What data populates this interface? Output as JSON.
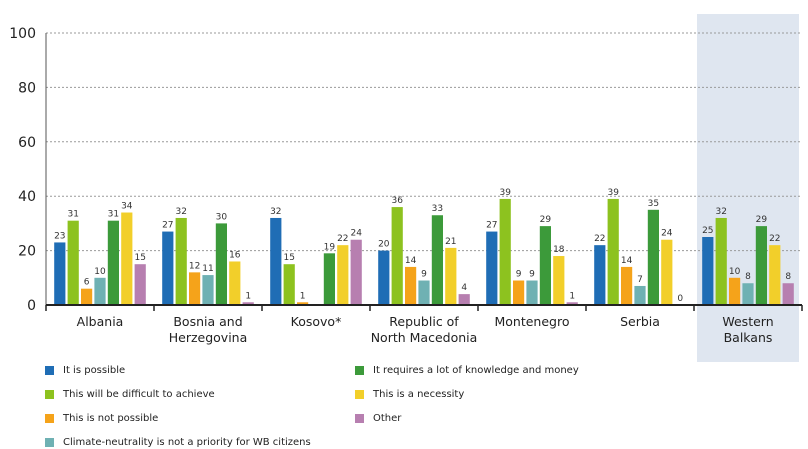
{
  "chart_data": {
    "type": "bar",
    "categories": [
      "Albania",
      "Bosnia and Herzegovina",
      "Kosovo*",
      "Republic of North Macedonia",
      "Montenegro",
      "Serbia",
      "Western Balkans"
    ],
    "category_lines": [
      [
        "Albania"
      ],
      [
        "Bosnia and",
        "Herzegovina"
      ],
      [
        "Kosovo*"
      ],
      [
        "Republic of",
        "North Macedonia"
      ],
      [
        "Montenegro"
      ],
      [
        "Serbia"
      ],
      [
        "Western",
        "Balkans"
      ]
    ],
    "series": [
      {
        "name": "It is possible",
        "color": "#1f6db5",
        "values": [
          23,
          27,
          32,
          20,
          27,
          22,
          25
        ]
      },
      {
        "name": "This will be difficult to achieve",
        "color": "#8dc21f",
        "values": [
          31,
          32,
          15,
          36,
          39,
          39,
          32
        ]
      },
      {
        "name": "This is not possible",
        "color": "#f5a31a",
        "values": [
          6,
          12,
          1,
          14,
          9,
          14,
          10
        ]
      },
      {
        "name": "Climate-neutrality is not a priority for WB citizens",
        "color": "#6fb1b3",
        "values": [
          10,
          11,
          null,
          9,
          9,
          7,
          8
        ]
      },
      {
        "name": "It requires a lot of knowledge and money",
        "color": "#3c9a3a",
        "values": [
          31,
          30,
          19,
          33,
          29,
          35,
          29
        ]
      },
      {
        "name": "This is a necessity",
        "color": "#f2cf2a",
        "values": [
          34,
          16,
          22,
          21,
          18,
          24,
          22
        ]
      },
      {
        "name": "Other",
        "color": "#b77fb0",
        "values": [
          15,
          1,
          24,
          4,
          1,
          0,
          8
        ]
      }
    ],
    "ylim": [
      0,
      100
    ],
    "yticks": [
      0,
      20,
      40,
      60,
      80,
      100
    ],
    "grid": true,
    "highlight_category": "Western Balkans",
    "highlight_color": "#dfe6f0",
    "legend_position": "bottom"
  }
}
